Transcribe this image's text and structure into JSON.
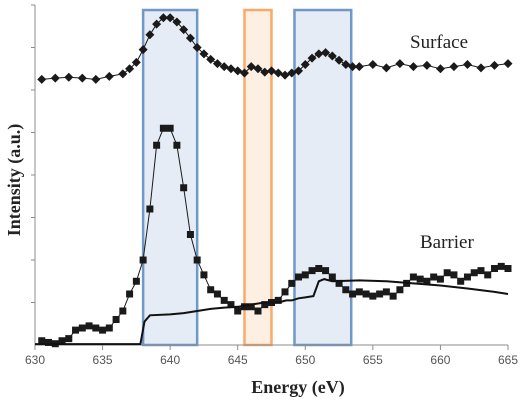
{
  "chart_data": {
    "type": "line",
    "xlabel": "Energy (eV)",
    "ylabel": "Intensity (a.u.)",
    "xlim": [
      630,
      665
    ],
    "ylim": [
      0,
      8
    ],
    "x_ticks": [
      "630",
      "635",
      "640",
      "645",
      "650",
      "655",
      "660",
      "665"
    ],
    "annotations": [
      "Surface",
      "Barrier"
    ],
    "highlight_bands": [
      {
        "x0": 638,
        "x1": 642,
        "color": "#4f81bd"
      },
      {
        "x0": 645.5,
        "x1": 647.5,
        "color": "#f79646"
      },
      {
        "x0": 649.2,
        "x1": 653.4,
        "color": "#4f81bd"
      }
    ],
    "series": [
      {
        "marker": "diamond",
        "color": "#1a1a1a",
        "x": [
          630.5,
          631.5,
          632.5,
          633.5,
          634.5,
          635.5,
          636.5,
          637,
          637.5,
          638,
          638.5,
          639,
          639.5,
          640,
          640.5,
          641,
          641.5,
          642,
          642.5,
          643,
          643.5,
          644,
          644.5,
          645,
          645.5,
          646,
          646.5,
          647,
          647.5,
          648,
          648.5,
          649,
          649.5,
          650,
          650.5,
          651,
          651.5,
          652,
          652.5,
          653,
          653.5,
          654,
          655,
          656,
          657,
          658,
          659,
          660,
          661,
          662,
          663,
          664,
          665
        ],
        "values": [
          6.25,
          6.28,
          6.3,
          6.28,
          6.25,
          6.32,
          6.38,
          6.5,
          6.65,
          6.95,
          7.3,
          7.55,
          7.7,
          7.7,
          7.6,
          7.42,
          7.22,
          7.0,
          6.85,
          6.72,
          6.62,
          6.55,
          6.5,
          6.45,
          6.4,
          6.55,
          6.5,
          6.42,
          6.45,
          6.4,
          6.35,
          6.4,
          6.45,
          6.6,
          6.75,
          6.85,
          6.88,
          6.8,
          6.7,
          6.6,
          6.55,
          6.55,
          6.6,
          6.52,
          6.62,
          6.55,
          6.58,
          6.5,
          6.55,
          6.6,
          6.52,
          6.58,
          6.62
        ]
      },
      {
        "marker": "square",
        "color": "#1a1a1a",
        "x": [
          630.5,
          631,
          631.5,
          632,
          632.5,
          633,
          633.5,
          634,
          634.5,
          635,
          635.5,
          636,
          636.5,
          637,
          637.5,
          638,
          638.5,
          639,
          639.5,
          640,
          640.5,
          641,
          641.5,
          642,
          642.5,
          643,
          643.5,
          644,
          644.5,
          645,
          645.5,
          646,
          646.5,
          647,
          647.5,
          648,
          648.5,
          649,
          649.5,
          650,
          650.5,
          651,
          651.5,
          652,
          652.5,
          653,
          653.5,
          654,
          654.5,
          655,
          655.5,
          656,
          656.5,
          657,
          657.5,
          658,
          658.5,
          659,
          659.5,
          660,
          660.5,
          661,
          661.5,
          662,
          662.5,
          663,
          663.5,
          664,
          664.5,
          665
        ],
        "values": [
          0.1,
          0.06,
          0.03,
          0.1,
          0.15,
          0.35,
          0.4,
          0.45,
          0.4,
          0.35,
          0.4,
          0.6,
          0.8,
          1.2,
          1.5,
          2.0,
          3.2,
          4.7,
          5.1,
          5.1,
          4.7,
          3.7,
          2.6,
          2.0,
          1.65,
          1.3,
          1.2,
          1.05,
          0.95,
          0.8,
          0.9,
          0.9,
          0.8,
          0.95,
          1.0,
          1.05,
          1.25,
          1.45,
          1.6,
          1.65,
          1.75,
          1.8,
          1.75,
          1.6,
          1.45,
          1.3,
          1.2,
          1.25,
          1.2,
          1.15,
          1.2,
          1.25,
          1.15,
          1.3,
          1.45,
          1.6,
          1.55,
          1.5,
          1.6,
          1.55,
          1.7,
          1.65,
          1.5,
          1.6,
          1.7,
          1.75,
          1.65,
          1.8,
          1.85,
          1.8
        ]
      },
      {
        "marker": "none",
        "color": "#111111",
        "x": [
          630,
          637.8,
          638.1,
          638.5,
          640,
          641,
          642,
          643,
          644,
          645,
          646,
          647,
          647.5,
          648,
          648.6,
          649,
          649.5,
          650,
          650.6,
          651,
          651.4,
          652,
          654,
          656,
          658,
          660,
          662,
          664,
          665
        ],
        "values": [
          0.02,
          0.02,
          0.55,
          0.7,
          0.72,
          0.75,
          0.8,
          0.85,
          0.88,
          0.9,
          0.95,
          1.0,
          1.0,
          1.0,
          1.05,
          1.05,
          1.1,
          1.12,
          1.15,
          1.5,
          1.55,
          1.5,
          1.52,
          1.5,
          1.45,
          1.4,
          1.33,
          1.25,
          1.2
        ]
      }
    ]
  }
}
